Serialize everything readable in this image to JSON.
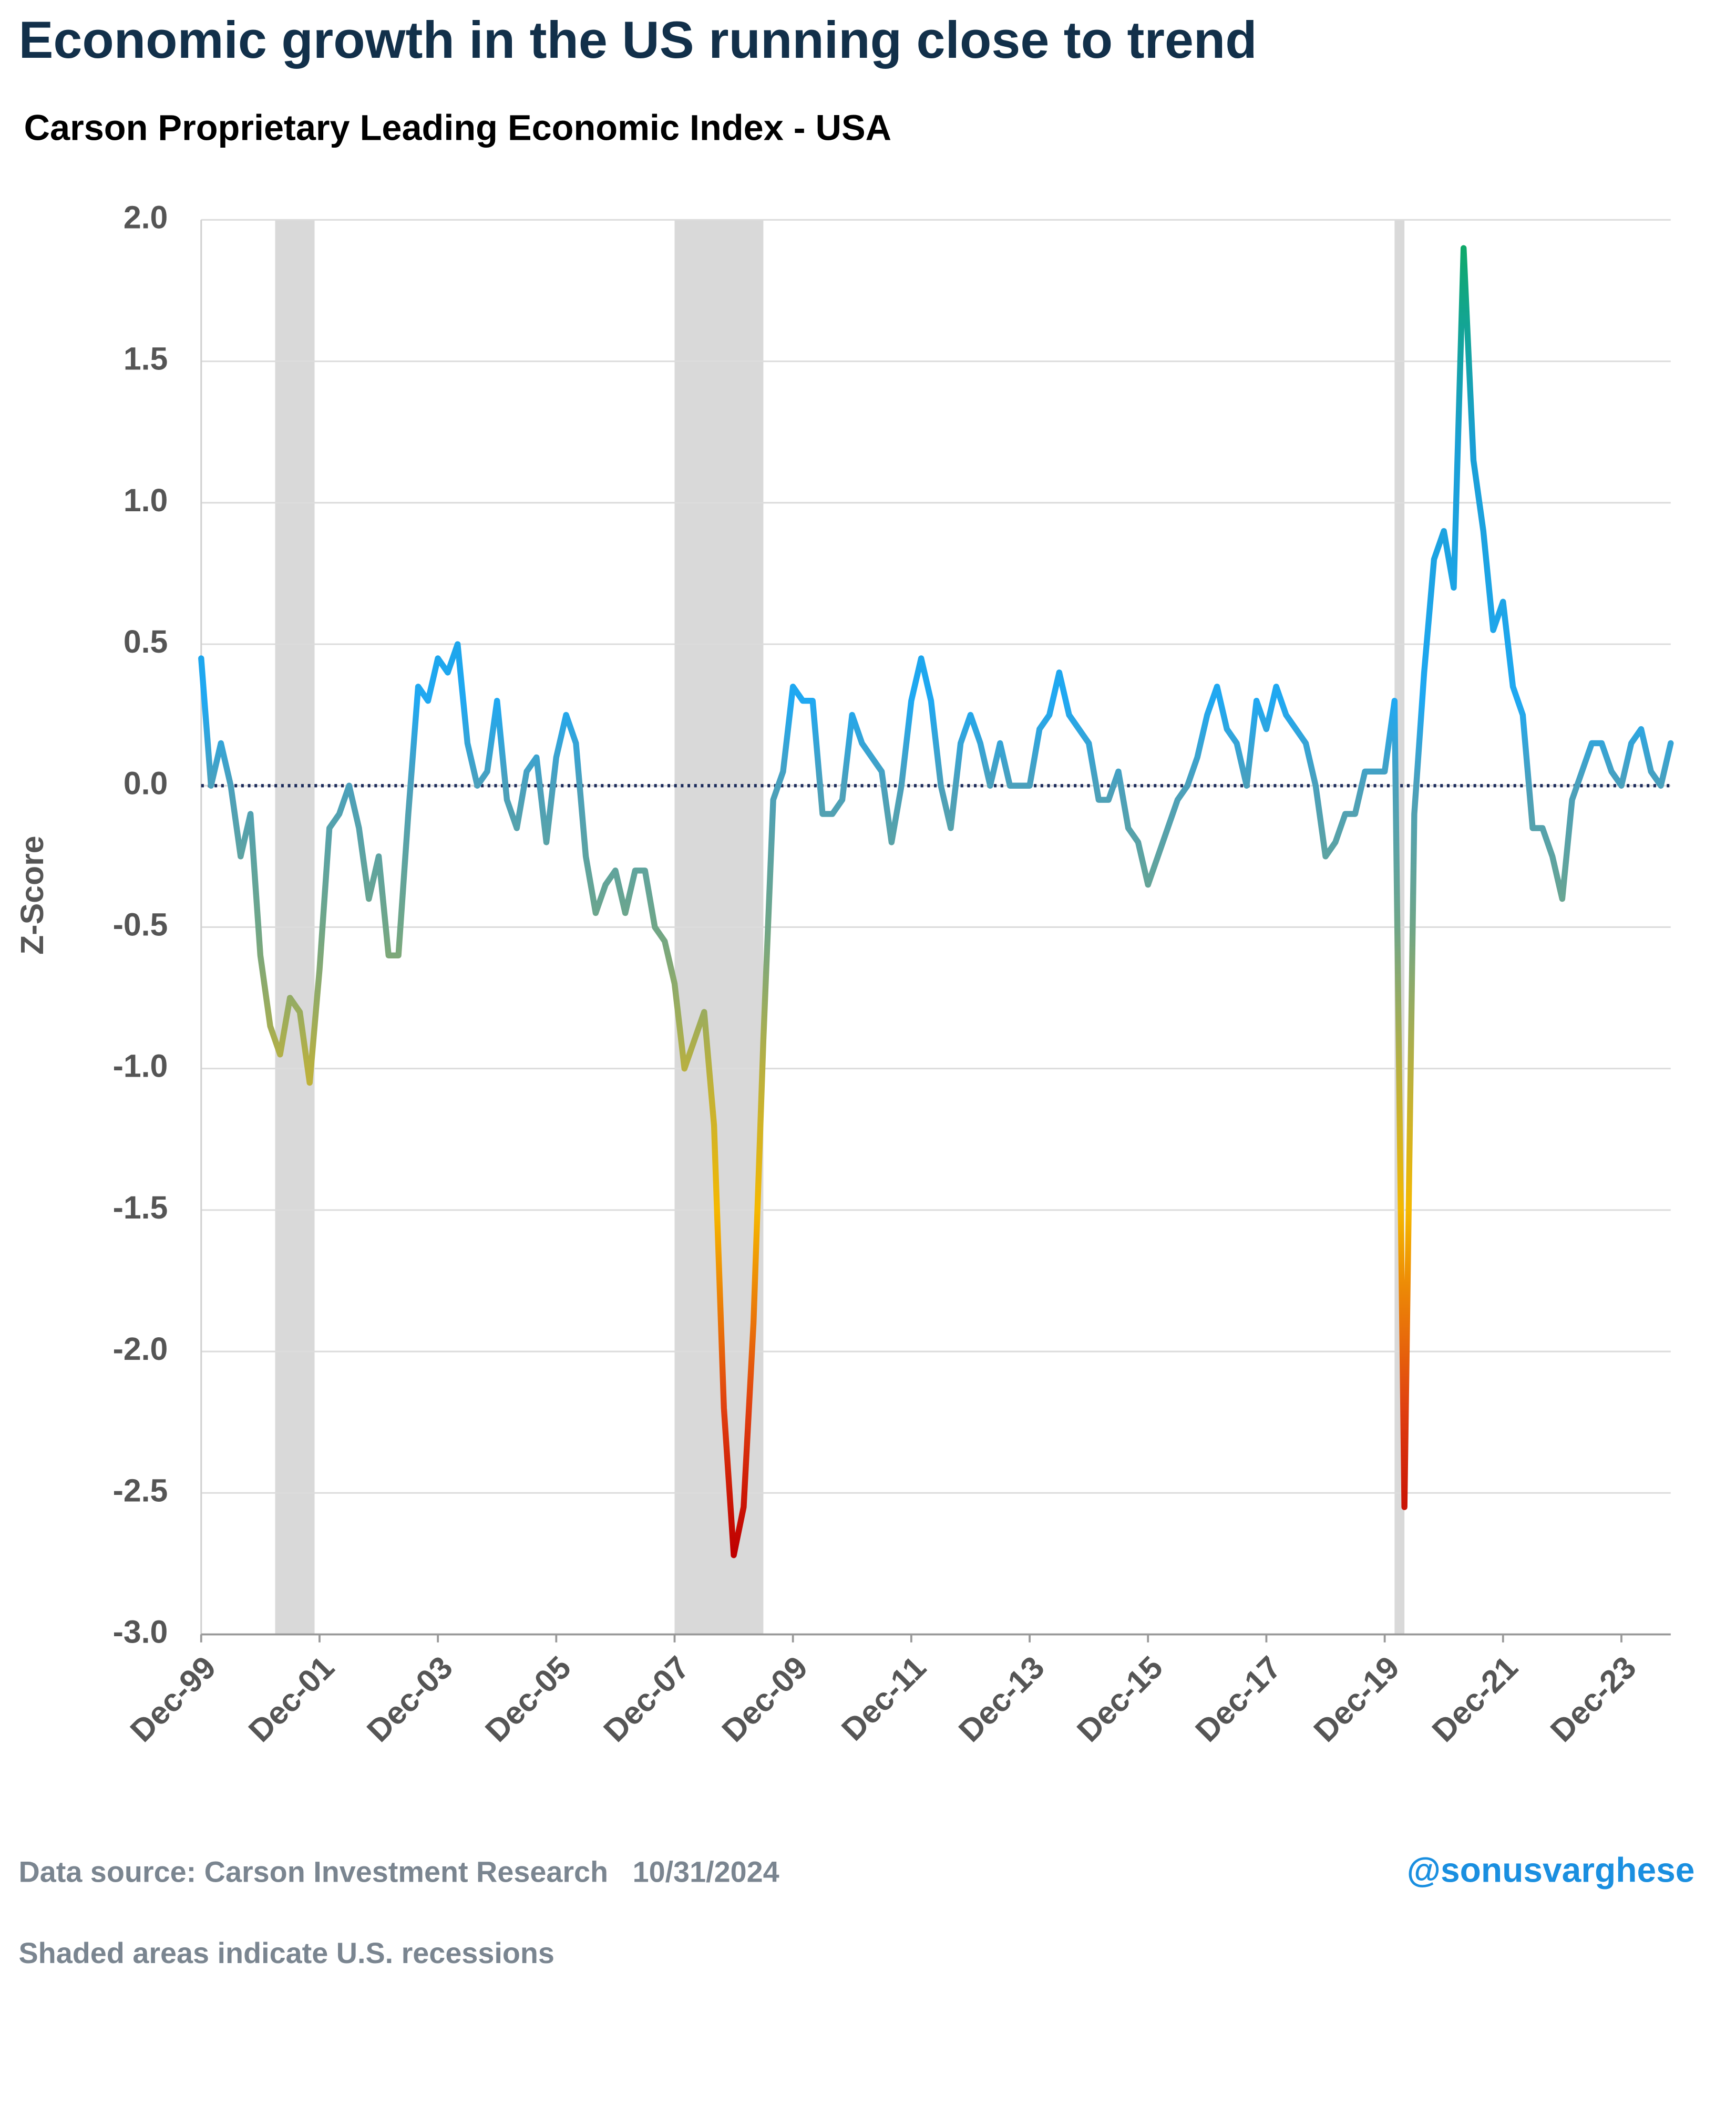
{
  "chart_data": {
    "type": "line",
    "title": "Economic growth in the US running close to trend",
    "subtitle": "Carson Proprietary Leading Economic Index - USA",
    "y_label": "Z-Score",
    "source": "Data source: Carson Investment Research   10/31/2024",
    "note": "Shaded areas indicate U.S. recessions",
    "handle": "@sonusvarghese",
    "ylim": [
      -3.0,
      2.0
    ],
    "yticks": [
      {
        "value": 2,
        "label": "2.0"
      },
      1.5,
      {
        "value": 1,
        "label": "1.0"
      },
      0.5,
      {
        "value": 0,
        "label": "0.0"
      },
      -0.5,
      {
        "value": -1,
        "label": "-1.0"
      },
      -1.5,
      {
        "value": -2,
        "label": "-2.0"
      },
      -2.5,
      {
        "value": -3,
        "label": "-3.0"
      }
    ],
    "xlim": [
      "Dec-99",
      "Oct-24"
    ],
    "xticks": [
      "Dec-99",
      "Dec-01",
      "Dec-03",
      "Dec-05",
      "Dec-07",
      "Dec-09",
      "Dec-11",
      "Dec-13",
      "Dec-15",
      "Dec-17",
      "Dec-19",
      "Dec-21",
      "Dec-23"
    ],
    "grid": true,
    "reference_line": 0,
    "reference_color": "#1a2a5a",
    "recession_color": "#d9d9d9",
    "recessions": [
      {
        "start": "Mar-01",
        "end": "Nov-01"
      },
      {
        "start": "Dec-07",
        "end": "Jun-09"
      },
      {
        "start": "Feb-20",
        "end": "Apr-20"
      }
    ],
    "color_scale": [
      {
        "value": 1.9,
        "color": "#0fa86a"
      },
      {
        "value": 1.2,
        "color": "#1a9fd6"
      },
      {
        "value": 0.3,
        "color": "#1fa8f2"
      },
      {
        "value": 0.0,
        "color": "#4aa0bc"
      },
      {
        "value": -0.5,
        "color": "#6fa688"
      },
      {
        "value": -1.0,
        "color": "#b8b040"
      },
      {
        "value": -1.5,
        "color": "#f5b800"
      },
      {
        "value": -2.2,
        "color": "#e04010"
      },
      {
        "value": -2.7,
        "color": "#c00000"
      }
    ],
    "x": [
      "Dec-99",
      "Feb-00",
      "Apr-00",
      "Jun-00",
      "Aug-00",
      "Oct-00",
      "Dec-00",
      "Feb-01",
      "Apr-01",
      "Jun-01",
      "Aug-01",
      "Oct-01",
      "Dec-01",
      "Feb-02",
      "Apr-02",
      "Jun-02",
      "Aug-02",
      "Oct-02",
      "Dec-02",
      "Feb-03",
      "Apr-03",
      "Jun-03",
      "Aug-03",
      "Oct-03",
      "Dec-03",
      "Feb-04",
      "Apr-04",
      "Jun-04",
      "Aug-04",
      "Oct-04",
      "Dec-04",
      "Feb-05",
      "Apr-05",
      "Jun-05",
      "Aug-05",
      "Oct-05",
      "Dec-05",
      "Feb-06",
      "Apr-06",
      "Jun-06",
      "Aug-06",
      "Oct-06",
      "Dec-06",
      "Feb-07",
      "Apr-07",
      "Jun-07",
      "Aug-07",
      "Oct-07",
      "Dec-07",
      "Feb-08",
      "Apr-08",
      "Jun-08",
      "Aug-08",
      "Oct-08",
      "Dec-08",
      "Feb-09",
      "Apr-09",
      "Jun-09",
      "Aug-09",
      "Oct-09",
      "Dec-09",
      "Feb-10",
      "Apr-10",
      "Jun-10",
      "Aug-10",
      "Oct-10",
      "Dec-10",
      "Feb-11",
      "Apr-11",
      "Jun-11",
      "Aug-11",
      "Oct-11",
      "Dec-11",
      "Feb-12",
      "Apr-12",
      "Jun-12",
      "Aug-12",
      "Oct-12",
      "Dec-12",
      "Feb-13",
      "Apr-13",
      "Jun-13",
      "Aug-13",
      "Oct-13",
      "Dec-13",
      "Feb-14",
      "Apr-14",
      "Jun-14",
      "Aug-14",
      "Oct-14",
      "Dec-14",
      "Feb-15",
      "Apr-15",
      "Jun-15",
      "Aug-15",
      "Oct-15",
      "Dec-15",
      "Feb-16",
      "Apr-16",
      "Jun-16",
      "Aug-16",
      "Oct-16",
      "Dec-16",
      "Feb-17",
      "Apr-17",
      "Jun-17",
      "Aug-17",
      "Oct-17",
      "Dec-17",
      "Feb-18",
      "Apr-18",
      "Jun-18",
      "Aug-18",
      "Oct-18",
      "Dec-18",
      "Feb-19",
      "Apr-19",
      "Jun-19",
      "Aug-19",
      "Oct-19",
      "Dec-19",
      "Feb-20",
      "Apr-20",
      "Jun-20",
      "Aug-20",
      "Oct-20",
      "Dec-20",
      "Feb-21",
      "Apr-21",
      "Jun-21",
      "Aug-21",
      "Oct-21",
      "Dec-21",
      "Feb-22",
      "Apr-22",
      "Jun-22",
      "Aug-22",
      "Oct-22",
      "Dec-22",
      "Feb-23",
      "Apr-23",
      "Jun-23",
      "Aug-23",
      "Oct-23",
      "Dec-23",
      "Feb-24",
      "Apr-24",
      "Jun-24",
      "Aug-24",
      "Oct-24"
    ],
    "values": [
      0.45,
      0.0,
      0.15,
      0.0,
      -0.25,
      -0.1,
      -0.6,
      -0.85,
      -0.95,
      -0.75,
      -0.8,
      -1.05,
      -0.65,
      -0.15,
      -0.1,
      0.0,
      -0.15,
      -0.4,
      -0.25,
      -0.6,
      -0.6,
      -0.1,
      0.35,
      0.3,
      0.45,
      0.4,
      0.5,
      0.15,
      0.0,
      0.05,
      0.3,
      -0.05,
      -0.15,
      0.05,
      0.1,
      -0.2,
      0.1,
      0.25,
      0.15,
      -0.25,
      -0.45,
      -0.35,
      -0.3,
      -0.45,
      -0.3,
      -0.3,
      -0.5,
      -0.55,
      -0.7,
      -1.0,
      -0.9,
      -0.8,
      -1.2,
      -2.2,
      -2.72,
      -2.55,
      -1.9,
      -0.9,
      -0.05,
      0.05,
      0.35,
      0.3,
      0.3,
      -0.1,
      -0.1,
      -0.05,
      0.25,
      0.15,
      0.1,
      0.05,
      -0.2,
      0.0,
      0.3,
      0.45,
      0.3,
      0.0,
      -0.15,
      0.15,
      0.25,
      0.15,
      0.0,
      0.15,
      0.0,
      0.0,
      0.0,
      0.2,
      0.25,
      0.4,
      0.25,
      0.2,
      0.15,
      -0.05,
      -0.05,
      0.05,
      -0.15,
      -0.2,
      -0.35,
      -0.25,
      -0.15,
      -0.05,
      0.0,
      0.1,
      0.25,
      0.35,
      0.2,
      0.15,
      0.0,
      0.3,
      0.2,
      0.35,
      0.25,
      0.2,
      0.15,
      0.0,
      -0.25,
      -0.2,
      -0.1,
      -0.1,
      0.05,
      0.05,
      0.05,
      0.3,
      -2.55,
      -0.1,
      0.4,
      0.8,
      0.9,
      0.7,
      1.9,
      1.15,
      0.9,
      0.55,
      0.65,
      0.35,
      0.25,
      -0.15,
      -0.15,
      -0.25,
      -0.4,
      -0.05,
      0.05,
      0.15,
      0.15,
      0.05,
      0.0,
      0.15,
      0.2,
      0.05,
      0.0,
      0.15
    ]
  }
}
